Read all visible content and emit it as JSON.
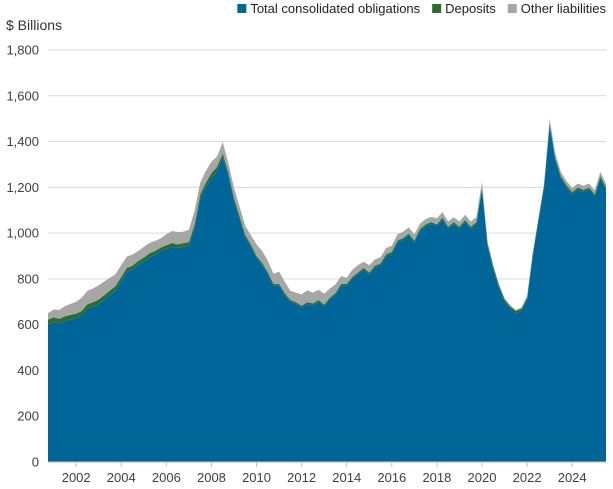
{
  "chart_data": {
    "type": "area",
    "stacked": true,
    "title": "",
    "xlabel": "",
    "ylabel": "$ Billions",
    "ylim": [
      0,
      1800
    ],
    "xlim": [
      2000.75,
      2025.5
    ],
    "yticks": [
      0,
      200,
      400,
      600,
      800,
      1000,
      1200,
      1400,
      1600,
      1800
    ],
    "ytick_labels": [
      "0",
      "200",
      "400",
      "600",
      "800",
      "1,000",
      "1,200",
      "1,400",
      "1,600",
      "1,800"
    ],
    "xticks": [
      2002,
      2004,
      2006,
      2008,
      2010,
      2012,
      2014,
      2016,
      2018,
      2020,
      2022,
      2024
    ],
    "xtick_labels": [
      "2002",
      "2004",
      "2006",
      "2008",
      "2010",
      "2012",
      "2014",
      "2016",
      "2018",
      "2020",
      "2022",
      "2024"
    ],
    "grid": true,
    "legend_position": "top-right",
    "x": [
      2000.75,
      2001.0,
      2001.25,
      2001.5,
      2001.75,
      2002.0,
      2002.25,
      2002.5,
      2002.75,
      2003.0,
      2003.25,
      2003.5,
      2003.75,
      2004.0,
      2004.25,
      2004.5,
      2004.75,
      2005.0,
      2005.25,
      2005.5,
      2005.75,
      2006.0,
      2006.25,
      2006.5,
      2006.75,
      2007.0,
      2007.25,
      2007.5,
      2007.75,
      2008.0,
      2008.25,
      2008.5,
      2008.75,
      2009.0,
      2009.25,
      2009.5,
      2009.75,
      2010.0,
      2010.25,
      2010.5,
      2010.75,
      2011.0,
      2011.25,
      2011.5,
      2011.75,
      2012.0,
      2012.25,
      2012.5,
      2012.75,
      2013.0,
      2013.25,
      2013.5,
      2013.75,
      2014.0,
      2014.25,
      2014.5,
      2014.75,
      2015.0,
      2015.25,
      2015.5,
      2015.75,
      2016.0,
      2016.25,
      2016.5,
      2016.75,
      2017.0,
      2017.25,
      2017.5,
      2017.75,
      2018.0,
      2018.25,
      2018.5,
      2018.75,
      2019.0,
      2019.25,
      2019.5,
      2019.75,
      2020.0,
      2020.25,
      2020.5,
      2020.75,
      2021.0,
      2021.25,
      2021.5,
      2021.75,
      2022.0,
      2022.25,
      2022.5,
      2022.75,
      2023.0,
      2023.25,
      2023.5,
      2023.75,
      2024.0,
      2024.25,
      2024.5,
      2024.75,
      2025.0,
      2025.25,
      2025.5
    ],
    "series": [
      {
        "name": "Total consolidated obligations",
        "color": "#006699",
        "values": [
          600,
          610,
          605,
          615,
          622,
          628,
          640,
          670,
          678,
          690,
          710,
          730,
          750,
          790,
          830,
          840,
          860,
          875,
          895,
          905,
          920,
          930,
          940,
          935,
          940,
          945,
          1020,
          1150,
          1200,
          1240,
          1270,
          1330,
          1250,
          1140,
          1060,
          980,
          940,
          890,
          860,
          820,
          770,
          770,
          730,
          700,
          690,
          675,
          690,
          685,
          700,
          680,
          710,
          730,
          770,
          770,
          800,
          820,
          840,
          820,
          850,
          860,
          900,
          910,
          960,
          970,
          990,
          960,
          1010,
          1030,
          1040,
          1030,
          1060,
          1020,
          1040,
          1020,
          1050,
          1020,
          1040,
          1190,
          940,
          840,
          760,
          700,
          670,
          650,
          660,
          710,
          900,
          1050,
          1200,
          1470,
          1320,
          1240,
          1200,
          1170,
          1190,
          1180,
          1190,
          1160,
          1240,
          1190
        ]
      },
      {
        "name": "Deposits",
        "color": "#2e6b30",
        "values": [
          22,
          22,
          21,
          21,
          21,
          20,
          20,
          20,
          20,
          20,
          19,
          19,
          19,
          19,
          18,
          18,
          18,
          18,
          17,
          17,
          17,
          17,
          17,
          16,
          16,
          16,
          17,
          18,
          20,
          22,
          20,
          18,
          16,
          14,
          13,
          12,
          11,
          10,
          10,
          9,
          9,
          9,
          8,
          8,
          8,
          8,
          8,
          8,
          8,
          8,
          8,
          8,
          8,
          8,
          8,
          8,
          8,
          8,
          8,
          8,
          8,
          8,
          8,
          8,
          8,
          8,
          8,
          8,
          8,
          8,
          8,
          8,
          8,
          8,
          8,
          8,
          8,
          12,
          14,
          14,
          12,
          11,
          10,
          10,
          10,
          9,
          9,
          9,
          9,
          9,
          9,
          9,
          9,
          9,
          9,
          9,
          9,
          9,
          9,
          9
        ]
      },
      {
        "name": "Other liabilities",
        "color": "#a6a6a6",
        "values": [
          28,
          35,
          38,
          45,
          48,
          52,
          58,
          58,
          60,
          62,
          60,
          56,
          52,
          52,
          50,
          48,
          44,
          47,
          45,
          44,
          40,
          48,
          52,
          54,
          50,
          54,
          60,
          52,
          52,
          50,
          45,
          50,
          40,
          44,
          42,
          40,
          40,
          50,
          52,
          50,
          44,
          52,
          50,
          40,
          42,
          50,
          52,
          47,
          44,
          47,
          40,
          38,
          34,
          27,
          32,
          32,
          27,
          32,
          27,
          27,
          27,
          27,
          27,
          28,
          27,
          27,
          23,
          23,
          23,
          27,
          23,
          23,
          22,
          22,
          22,
          22,
          22,
          22,
          6,
          6,
          6,
          5,
          5,
          5,
          5,
          6,
          6,
          6,
          7,
          21,
          20,
          18,
          18,
          18,
          18,
          18,
          18,
          18,
          18,
          18
        ]
      }
    ]
  }
}
